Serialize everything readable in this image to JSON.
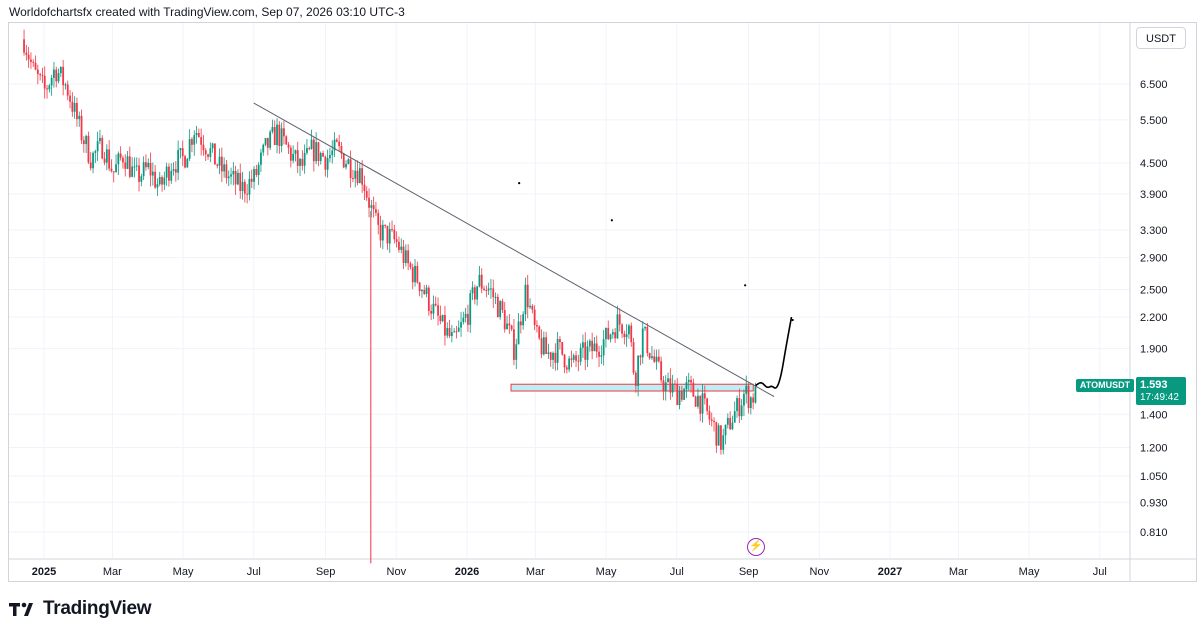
{
  "header": {
    "caption": "Worldofchartsfx created with TradingView.com, Sep 07, 2026 03:10 UTC-3"
  },
  "currency_button": "USDT",
  "price_tag": {
    "symbol": "ATOMUSDT",
    "price": "1.593",
    "countdown": "17:49:42"
  },
  "footer": {
    "brand": "TradingView"
  },
  "colors": {
    "up": "#089981",
    "down": "#f23645",
    "zone_fill": "#b2ebf2",
    "zone_border": "#f23645",
    "trendline": "#5d606b",
    "drawing": "#000000",
    "grid": "#f0f3fa"
  },
  "chart_data": {
    "type": "candlestick",
    "symbol": "ATOMUSDT",
    "scale": "log",
    "y_ticks": [
      6.5,
      5.5,
      4.5,
      3.9,
      3.3,
      2.9,
      2.5,
      2.2,
      1.9,
      1.4,
      1.2,
      1.05,
      0.93,
      0.81
    ],
    "y_tick_labels": [
      "6.500",
      "5.500",
      "4.500",
      "3.900",
      "3.300",
      "2.900",
      "2.500",
      "2.200",
      "1.900",
      "1.400",
      "1.200",
      "1.050",
      "0.930",
      "0.810"
    ],
    "x_ticks": [
      "2025-01-01",
      "2025-03-01",
      "2025-05-01",
      "2025-07-01",
      "2025-09-01",
      "2025-11-01",
      "2026-01-01",
      "2026-03-01",
      "2026-05-01",
      "2026-07-01",
      "2026-09-01",
      "2026-11-01",
      "2027-01-01",
      "2027-03-01",
      "2027-05-01",
      "2027-07-01"
    ],
    "x_tick_labels": [
      "2025",
      "Mar",
      "May",
      "Jul",
      "Sep",
      "Nov",
      "2026",
      "Mar",
      "May",
      "Jul",
      "Sep",
      "Nov",
      "2027",
      "Mar",
      "May",
      "Jul"
    ],
    "bold_x_labels": [
      "2025",
      "2026",
      "2027"
    ],
    "last_price": 1.593,
    "price_path": [
      [
        "2024-12-14",
        8.0
      ],
      [
        "2024-12-22",
        6.9
      ],
      [
        "2025-01-01",
        6.3
      ],
      [
        "2025-01-10",
        7.0
      ],
      [
        "2025-01-20",
        6.4
      ],
      [
        "2025-02-01",
        5.2
      ],
      [
        "2025-02-10",
        4.6
      ],
      [
        "2025-02-20",
        4.9
      ],
      [
        "2025-03-01",
        4.3
      ],
      [
        "2025-03-10",
        4.7
      ],
      [
        "2025-03-20",
        4.2
      ],
      [
        "2025-04-01",
        4.4
      ],
      [
        "2025-04-10",
        4.0
      ],
      [
        "2025-04-20",
        4.5
      ],
      [
        "2025-05-01",
        4.6
      ],
      [
        "2025-05-10",
        5.3
      ],
      [
        "2025-05-20",
        4.9
      ],
      [
        "2025-06-01",
        4.4
      ],
      [
        "2025-06-10",
        4.2
      ],
      [
        "2025-06-20",
        4.0
      ],
      [
        "2025-07-01",
        4.2
      ],
      [
        "2025-07-10",
        4.8
      ],
      [
        "2025-07-20",
        5.2
      ],
      [
        "2025-08-01",
        4.7
      ],
      [
        "2025-08-10",
        4.4
      ],
      [
        "2025-08-20",
        4.8
      ],
      [
        "2025-09-01",
        4.6
      ],
      [
        "2025-09-10",
        4.8
      ],
      [
        "2025-09-20",
        4.5
      ],
      [
        "2025-10-01",
        4.3
      ],
      [
        "2025-10-10",
        3.6
      ],
      [
        "2025-10-15",
        3.3
      ],
      [
        "2025-10-25",
        3.2
      ],
      [
        "2025-11-01",
        3.1
      ],
      [
        "2025-11-10",
        2.8
      ],
      [
        "2025-11-20",
        2.6
      ],
      [
        "2025-12-01",
        2.3
      ],
      [
        "2025-12-10",
        2.1
      ],
      [
        "2025-12-20",
        1.95
      ],
      [
        "2026-01-01",
        2.25
      ],
      [
        "2026-01-10",
        2.6
      ],
      [
        "2026-01-20",
        2.5
      ],
      [
        "2026-02-01",
        2.2
      ],
      [
        "2026-02-10",
        1.9
      ],
      [
        "2026-02-20",
        2.5
      ],
      [
        "2026-03-01",
        2.0
      ],
      [
        "2026-03-10",
        1.85
      ],
      [
        "2026-03-20",
        1.9
      ],
      [
        "2026-04-01",
        1.75
      ],
      [
        "2026-04-10",
        1.85
      ],
      [
        "2026-04-20",
        1.9
      ],
      [
        "2026-05-01",
        2.0
      ],
      [
        "2026-05-10",
        2.15
      ],
      [
        "2026-05-20",
        2.1
      ],
      [
        "2026-05-25",
        1.65
      ],
      [
        "2026-06-01",
        2.05
      ],
      [
        "2026-06-10",
        1.8
      ],
      [
        "2026-06-20",
        1.6
      ],
      [
        "2026-07-01",
        1.55
      ],
      [
        "2026-07-10",
        1.58
      ],
      [
        "2026-07-20",
        1.5
      ],
      [
        "2026-08-01",
        1.32
      ],
      [
        "2026-08-08",
        1.22
      ],
      [
        "2026-08-15",
        1.35
      ],
      [
        "2026-08-22",
        1.45
      ],
      [
        "2026-08-28",
        1.55
      ],
      [
        "2026-09-03",
        1.5
      ],
      [
        "2026-09-07",
        1.593
      ]
    ],
    "trendline": {
      "from": [
        "2025-07-01",
        5.95
      ],
      "to": [
        "2026-09-23",
        1.52
      ]
    },
    "support_zone": {
      "from_date": "2026-02-08",
      "to_date": "2026-09-05",
      "top": 1.61,
      "bottom": 1.56
    },
    "projection_path": [
      [
        "2026-09-07",
        1.6
      ],
      [
        "2026-09-12",
        1.63
      ],
      [
        "2026-09-17",
        1.58
      ],
      [
        "2026-09-21",
        1.6
      ],
      [
        "2026-09-25",
        1.57
      ],
      [
        "2026-09-29",
        1.67
      ],
      [
        "2026-10-03",
        1.9
      ],
      [
        "2026-10-08",
        2.2
      ]
    ],
    "marks": [
      [
        "2026-02-15",
        4.1
      ],
      [
        "2026-05-06",
        3.45
      ],
      [
        "2026-08-29",
        2.55
      ],
      [
        "2026-10-09",
        2.17
      ]
    ],
    "spike_line": {
      "date": "2025-10-10",
      "low": 0.7
    }
  }
}
